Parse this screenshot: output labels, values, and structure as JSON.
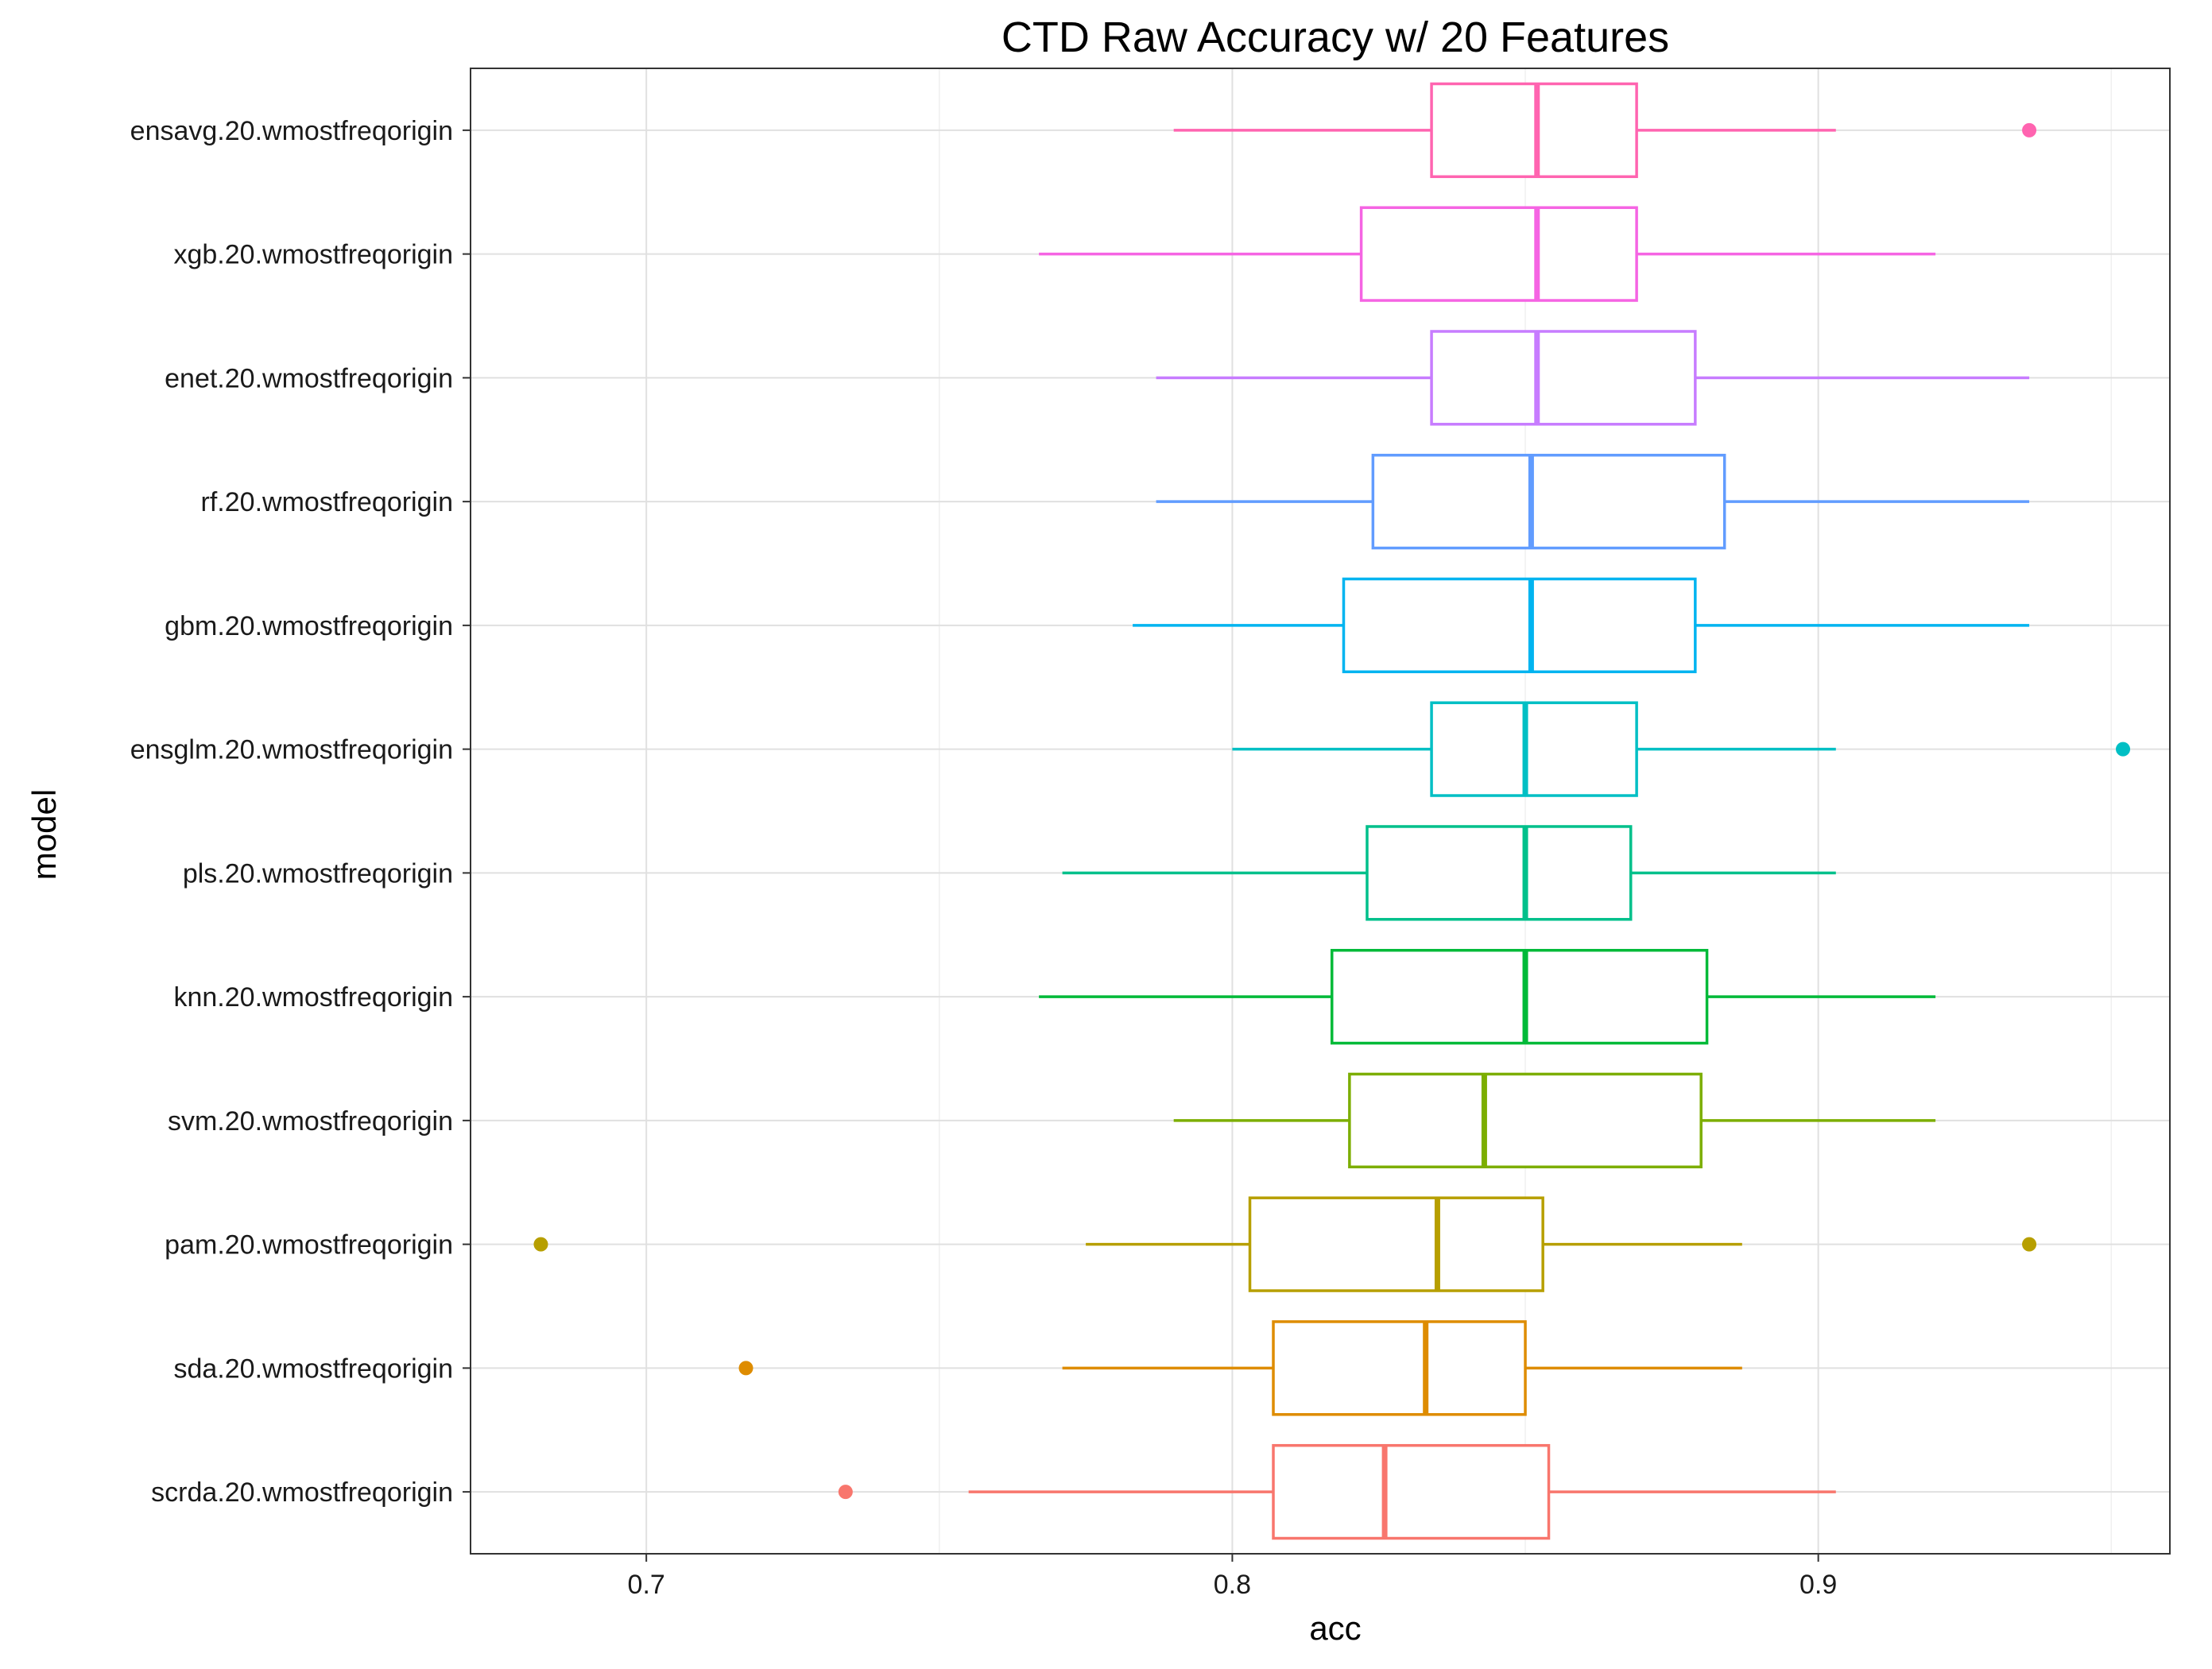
{
  "chart_data": {
    "type": "boxplot",
    "orientation": "horizontal",
    "title": "CTD Raw Accuracy w/ 20 Features",
    "xlabel": "acc",
    "ylabel": "model",
    "xlim": [
      0.67,
      0.96
    ],
    "xticks": [
      0.7,
      0.8,
      0.9
    ],
    "xtick_labels": [
      "0.7",
      "0.8",
      "0.9"
    ],
    "grid": true,
    "legend": "none",
    "categories": [
      "scrda.20.wmostfreqorigin",
      "sda.20.wmostfreqorigin",
      "pam.20.wmostfreqorigin",
      "svm.20.wmostfreqorigin",
      "knn.20.wmostfreqorigin",
      "pls.20.wmostfreqorigin",
      "ensglm.20.wmostfreqorigin",
      "gbm.20.wmostfreqorigin",
      "rf.20.wmostfreqorigin",
      "enet.20.wmostfreqorigin",
      "xgb.20.wmostfreqorigin",
      "ensavg.20.wmostfreqorigin"
    ],
    "boxes": [
      {
        "model": "scrda.20.wmostfreqorigin",
        "color": "#F8766D",
        "whisker_low": 0.755,
        "q1": 0.807,
        "median": 0.826,
        "q3": 0.854,
        "whisker_high": 0.903,
        "outliers": [
          0.734
        ]
      },
      {
        "model": "sda.20.wmostfreqorigin",
        "color": "#DE8C00",
        "whisker_low": 0.771,
        "q1": 0.807,
        "median": 0.833,
        "q3": 0.85,
        "whisker_high": 0.887,
        "outliers": [
          0.717
        ]
      },
      {
        "model": "pam.20.wmostfreqorigin",
        "color": "#B79F00",
        "whisker_low": 0.775,
        "q1": 0.803,
        "median": 0.835,
        "q3": 0.853,
        "whisker_high": 0.887,
        "outliers": [
          0.682,
          0.936
        ]
      },
      {
        "model": "svm.20.wmostfreqorigin",
        "color": "#7CAE00",
        "whisker_low": 0.79,
        "q1": 0.82,
        "median": 0.843,
        "q3": 0.88,
        "whisker_high": 0.92,
        "outliers": []
      },
      {
        "model": "knn.20.wmostfreqorigin",
        "color": "#00BA38",
        "whisker_low": 0.767,
        "q1": 0.817,
        "median": 0.85,
        "q3": 0.881,
        "whisker_high": 0.92,
        "outliers": []
      },
      {
        "model": "pls.20.wmostfreqorigin",
        "color": "#00C08B",
        "whisker_low": 0.771,
        "q1": 0.823,
        "median": 0.85,
        "q3": 0.868,
        "whisker_high": 0.903,
        "outliers": []
      },
      {
        "model": "ensglm.20.wmostfreqorigin",
        "color": "#00BFC4",
        "whisker_low": 0.8,
        "q1": 0.834,
        "median": 0.85,
        "q3": 0.869,
        "whisker_high": 0.903,
        "outliers": [
          0.952
        ]
      },
      {
        "model": "gbm.20.wmostfreqorigin",
        "color": "#00B4F0",
        "whisker_low": 0.783,
        "q1": 0.819,
        "median": 0.851,
        "q3": 0.879,
        "whisker_high": 0.936,
        "outliers": []
      },
      {
        "model": "rf.20.wmostfreqorigin",
        "color": "#619CFF",
        "whisker_low": 0.787,
        "q1": 0.824,
        "median": 0.851,
        "q3": 0.884,
        "whisker_high": 0.936,
        "outliers": []
      },
      {
        "model": "enet.20.wmostfreqorigin",
        "color": "#C77CFF",
        "whisker_low": 0.787,
        "q1": 0.834,
        "median": 0.852,
        "q3": 0.879,
        "whisker_high": 0.936,
        "outliers": []
      },
      {
        "model": "xgb.20.wmostfreqorigin",
        "color": "#F564E3",
        "whisker_low": 0.767,
        "q1": 0.822,
        "median": 0.852,
        "q3": 0.869,
        "whisker_high": 0.92,
        "outliers": []
      },
      {
        "model": "ensavg.20.wmostfreqorigin",
        "color": "#FF64B0",
        "whisker_low": 0.79,
        "q1": 0.834,
        "median": 0.852,
        "q3": 0.869,
        "whisker_high": 0.903,
        "outliers": [
          0.936
        ]
      }
    ]
  }
}
